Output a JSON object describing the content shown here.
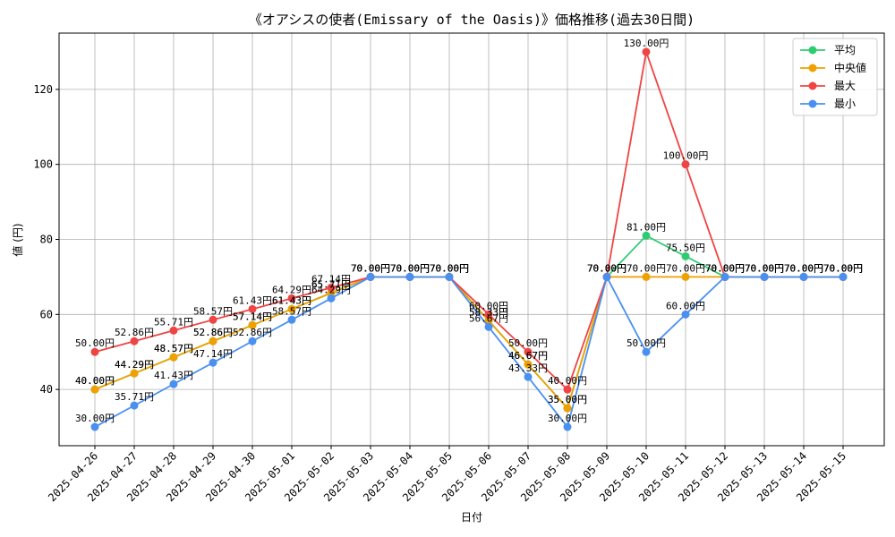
{
  "chart_data": {
    "type": "line",
    "title": "《オアシスの使者(Emissary of the Oasis)》価格推移(過去30日間)",
    "xlabel": "日付",
    "ylabel": "値 (円)",
    "ylim": [
      25,
      135
    ],
    "yticks": [
      40,
      60,
      80,
      100,
      120
    ],
    "grid": true,
    "legend_position": "top-right",
    "value_suffix": "円",
    "categories": [
      "2025-04-26",
      "2025-04-27",
      "2025-04-28",
      "2025-04-29",
      "2025-04-30",
      "2025-05-01",
      "2025-05-02",
      "2025-05-03",
      "2025-05-04",
      "2025-05-05",
      "2025-05-06",
      "2025-05-07",
      "2025-05-08",
      "2025-05-09",
      "2025-05-10",
      "2025-05-11",
      "2025-05-12",
      "2025-05-13",
      "2025-05-14",
      "2025-05-15"
    ],
    "series": [
      {
        "name": "平均",
        "color": "#2ecc71",
        "values": [
          40.0,
          44.29,
          48.57,
          52.86,
          57.14,
          61.43,
          65.71,
          70.0,
          70.0,
          70.0,
          58.33,
          46.67,
          35.0,
          70.0,
          81.0,
          75.5,
          70.0,
          70.0,
          70.0,
          70.0
        ]
      },
      {
        "name": "中央値",
        "color": "#f0a000",
        "values": [
          40.0,
          44.29,
          48.57,
          52.86,
          57.14,
          61.43,
          65.71,
          70.0,
          70.0,
          70.0,
          58.33,
          46.67,
          35.0,
          70.0,
          70.0,
          70.0,
          70.0,
          70.0,
          70.0,
          70.0
        ]
      },
      {
        "name": "最大",
        "color": "#ef4444",
        "values": [
          50.0,
          52.86,
          55.71,
          58.57,
          61.43,
          64.29,
          67.14,
          70.0,
          70.0,
          70.0,
          60.0,
          50.0,
          40.0,
          70.0,
          130.0,
          100.0,
          70.0,
          70.0,
          70.0,
          70.0
        ]
      },
      {
        "name": "最小",
        "color": "#4a90f0",
        "values": [
          30.0,
          35.71,
          41.43,
          47.14,
          52.86,
          58.57,
          64.29,
          70.0,
          70.0,
          70.0,
          56.67,
          43.33,
          30.0,
          70.0,
          50.0,
          60.0,
          70.0,
          70.0,
          70.0,
          70.0
        ]
      }
    ]
  }
}
